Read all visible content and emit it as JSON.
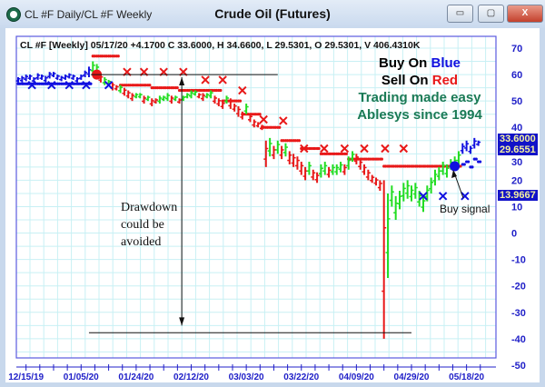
{
  "window": {
    "title": "CL #F Daily/CL #F Weekly",
    "chart_title": "Crude Oil (Futures)",
    "buttons": {
      "minimize": "▭",
      "maximize": "▢",
      "close": "X"
    }
  },
  "info_line": "CL #F [Weekly] 05/17/20  +4.1700 C 33.6000, H 34.6600, L 29.5301, O 29.5301, V 406.4310K",
  "legend": {
    "buy_prefix": "Buy On ",
    "buy_word": "Blue",
    "sell_prefix": "Sell On ",
    "sell_word": "Red",
    "tagline1": "Trading made easy",
    "tagline2": "Ablesys since 1994"
  },
  "annotations": {
    "drawdown": [
      "Drawdown",
      "could be",
      "avoided"
    ],
    "buy_signal": "Buy signal"
  },
  "last_values": {
    "close": "33.6000",
    "stop": "29.6551",
    "low": "13.9667"
  },
  "colors": {
    "buy": "#1010e0",
    "sell": "#e81818",
    "up": "#22dd22",
    "grid": "#c8f0f4",
    "axis": "#2020c8",
    "tagline": "#1a7a55"
  },
  "chart_data": {
    "type": "bar",
    "title": "Crude Oil (Futures)",
    "ylim": [
      -50,
      70
    ],
    "yticks": [
      70,
      60,
      50,
      40,
      30,
      20,
      10,
      0,
      -10,
      -20,
      -30,
      -40,
      -50
    ],
    "grid": true,
    "xtick_labels": [
      {
        "bar": 2,
        "label": "12/15/19"
      },
      {
        "bar": 16,
        "label": "01/05/20"
      },
      {
        "bar": 30,
        "label": "01/24/20"
      },
      {
        "bar": 44,
        "label": "02/12/20"
      },
      {
        "bar": 58,
        "label": "03/03/20"
      },
      {
        "bar": 72,
        "label": "03/22/20"
      },
      {
        "bar": 86,
        "label": "04/09/20"
      },
      {
        "bar": 100,
        "label": "04/29/20"
      },
      {
        "bar": 114,
        "label": "05/18/20"
      }
    ],
    "bars_format": "[low, high, color(b=blue buy, g=green, r=red sell), stop]",
    "bars": [
      [
        57,
        59,
        "b",
        56.5
      ],
      [
        57,
        59.5,
        "b",
        56.5
      ],
      [
        57.5,
        60,
        "b",
        56.5
      ],
      [
        58,
        60,
        "b",
        56.5
      ],
      [
        57,
        59,
        "b",
        56.5
      ],
      [
        58,
        60.5,
        "b",
        56.5
      ],
      [
        58,
        60,
        "b",
        56.5
      ],
      [
        57,
        59.5,
        "b",
        56.5
      ],
      [
        58.5,
        61,
        "b",
        56.5
      ],
      [
        59,
        61,
        "b",
        56.5
      ],
      [
        58,
        60,
        "b",
        56.5
      ],
      [
        57.5,
        59.5,
        "b",
        56.5
      ],
      [
        58,
        60,
        "b",
        56.5
      ],
      [
        58.5,
        60.5,
        "b",
        56.5
      ],
      [
        58,
        60,
        "b",
        56.5
      ],
      [
        57,
        59,
        "b",
        56.5
      ],
      [
        58,
        60,
        "b",
        56.5
      ],
      [
        59,
        61.5,
        "b",
        56.5
      ],
      [
        59,
        63,
        "b",
        56.5
      ],
      [
        60,
        65,
        "g",
        67
      ],
      [
        60,
        64,
        "g",
        67
      ],
      [
        57,
        60,
        "r",
        67
      ],
      [
        56,
        59,
        "g",
        67
      ],
      [
        56,
        58,
        "g",
        67
      ],
      [
        54,
        57,
        "r",
        67
      ],
      [
        54,
        56,
        "r",
        67
      ],
      [
        53,
        56,
        "g",
        56
      ],
      [
        52,
        55,
        "r",
        56
      ],
      [
        51,
        54,
        "r",
        56
      ],
      [
        50,
        53,
        "r",
        56
      ],
      [
        51,
        53,
        "g",
        56
      ],
      [
        51,
        53,
        "g",
        56
      ],
      [
        49,
        52,
        "r",
        56
      ],
      [
        50,
        52,
        "g",
        56
      ],
      [
        48,
        51,
        "r",
        55
      ],
      [
        49,
        51,
        "r",
        55
      ],
      [
        49,
        52,
        "g",
        55
      ],
      [
        50,
        52,
        "g",
        55
      ],
      [
        50,
        53,
        "g",
        55
      ],
      [
        49,
        52,
        "r",
        55
      ],
      [
        50,
        52,
        "g",
        55
      ],
      [
        49,
        51,
        "r",
        54
      ],
      [
        50,
        52,
        "g",
        54
      ],
      [
        51,
        53,
        "g",
        54
      ],
      [
        51,
        54,
        "g",
        54
      ],
      [
        52,
        54,
        "g",
        54
      ],
      [
        51,
        53,
        "r",
        54
      ],
      [
        50,
        53,
        "r",
        54
      ],
      [
        51,
        53,
        "g",
        54
      ],
      [
        51,
        54,
        "g",
        54
      ],
      [
        49,
        52,
        "r",
        54
      ],
      [
        48,
        51,
        "r",
        54
      ],
      [
        47,
        50,
        "r",
        50
      ],
      [
        49,
        52,
        "g",
        50
      ],
      [
        47,
        51,
        "r",
        50
      ],
      [
        46,
        49,
        "r",
        50
      ],
      [
        44,
        48,
        "r",
        50
      ],
      [
        43,
        46,
        "r",
        45
      ],
      [
        45,
        49,
        "g",
        45
      ],
      [
        42,
        45,
        "r",
        45
      ],
      [
        40,
        43,
        "r",
        45
      ],
      [
        40,
        42,
        "r",
        45
      ],
      [
        39,
        41,
        "r",
        40
      ],
      [
        25,
        35,
        "r",
        40
      ],
      [
        29,
        36,
        "g",
        40
      ],
      [
        28,
        33,
        "r",
        40
      ],
      [
        30,
        35,
        "g",
        40
      ],
      [
        28,
        33,
        "r",
        35
      ],
      [
        29,
        34,
        "g",
        35
      ],
      [
        26,
        31,
        "r",
        35
      ],
      [
        25,
        30,
        "r",
        35
      ],
      [
        24,
        29,
        "r",
        35
      ],
      [
        22,
        27,
        "r",
        32
      ],
      [
        20,
        25,
        "r",
        32
      ],
      [
        22,
        27,
        "g",
        32
      ],
      [
        20,
        24,
        "r",
        32
      ],
      [
        19,
        23,
        "r",
        32
      ],
      [
        21,
        26,
        "g",
        30
      ],
      [
        22,
        27,
        "g",
        30
      ],
      [
        21,
        25,
        "r",
        30
      ],
      [
        22,
        26,
        "g",
        30
      ],
      [
        22,
        26,
        "g",
        30
      ],
      [
        23,
        27,
        "g",
        30
      ],
      [
        22,
        26,
        "r",
        30
      ],
      [
        24,
        29,
        "g",
        28
      ],
      [
        27,
        31,
        "g",
        28
      ],
      [
        26,
        30,
        "r",
        28
      ],
      [
        24,
        28,
        "r",
        28
      ],
      [
        22,
        26,
        "r",
        28
      ],
      [
        20,
        24,
        "r",
        28
      ],
      [
        19,
        22,
        "r",
        28
      ],
      [
        18,
        21,
        "r",
        28
      ],
      [
        16,
        20,
        "r",
        28
      ],
      [
        -40,
        20,
        "r",
        25.3
      ],
      [
        -17,
        15,
        "g",
        25.3
      ],
      [
        10,
        18,
        "g",
        25.3
      ],
      [
        5,
        14,
        "g",
        25.3
      ],
      [
        9,
        16,
        "g",
        25.3
      ],
      [
        12,
        19,
        "g",
        25.3
      ],
      [
        13,
        20,
        "g",
        25.3
      ],
      [
        12,
        18,
        "g",
        25.3
      ],
      [
        13,
        19,
        "g",
        25.3
      ],
      [
        10,
        16,
        "g",
        25.3
      ],
      [
        8,
        14,
        "g",
        25.3
      ],
      [
        12,
        18,
        "g",
        25.3
      ],
      [
        15,
        21,
        "g",
        25.3
      ],
      [
        18,
        24,
        "g",
        25.3
      ],
      [
        20,
        25,
        "g",
        25.3
      ],
      [
        22,
        27,
        "g",
        25.3
      ],
      [
        21,
        26,
        "g",
        25.3
      ],
      [
        24,
        28,
        "g",
        25.3
      ],
      [
        24,
        29,
        "g",
        25.3
      ],
      [
        26,
        31,
        "g",
        25.3
      ],
      [
        30,
        34,
        "b",
        26
      ],
      [
        31,
        35,
        "b",
        27
      ],
      [
        30,
        33,
        "b",
        25
      ],
      [
        32,
        36,
        "b",
        28
      ],
      [
        33,
        35,
        "b",
        27
      ]
    ],
    "x_markers": [
      {
        "bar": 3.5,
        "value": 56,
        "color": "blue"
      },
      {
        "bar": 8.5,
        "value": 56,
        "color": "blue"
      },
      {
        "bar": 13,
        "value": 56,
        "color": "blue"
      },
      {
        "bar": 17.3,
        "value": 56,
        "color": "blue"
      },
      {
        "bar": 23,
        "value": 56,
        "color": "blue"
      },
      {
        "bar": 27.7,
        "value": 61,
        "color": "red"
      },
      {
        "bar": 32,
        "value": 61,
        "color": "red"
      },
      {
        "bar": 37,
        "value": 61,
        "color": "red"
      },
      {
        "bar": 42,
        "value": 61,
        "color": "red"
      },
      {
        "bar": 47.6,
        "value": 58,
        "color": "red"
      },
      {
        "bar": 52,
        "value": 58,
        "color": "red"
      },
      {
        "bar": 57,
        "value": 54,
        "color": "red"
      },
      {
        "bar": 62.4,
        "value": 43,
        "color": "red"
      },
      {
        "bar": 67.4,
        "value": 42.5,
        "color": "red"
      },
      {
        "bar": 72.7,
        "value": 32,
        "color": "red"
      },
      {
        "bar": 77.8,
        "value": 32,
        "color": "red"
      },
      {
        "bar": 83,
        "value": 32,
        "color": "red"
      },
      {
        "bar": 88,
        "value": 32,
        "color": "red"
      },
      {
        "bar": 93.3,
        "value": 32,
        "color": "red"
      },
      {
        "bar": 98,
        "value": 32,
        "color": "red"
      },
      {
        "bar": 103,
        "value": 14,
        "color": "blue"
      },
      {
        "bar": 108,
        "value": 14,
        "color": "blue"
      },
      {
        "bar": 113.6,
        "value": 14,
        "color": "blue"
      }
    ],
    "signal_circles": [
      {
        "bar": 20,
        "value": 60,
        "color": "red"
      },
      {
        "bar": 111,
        "value": 25.3,
        "color": "blue"
      }
    ],
    "reference_lines": [
      {
        "from_bar": 18.5,
        "to_bar": 66,
        "value": 60
      },
      {
        "from_bar": 18,
        "to_bar": 100,
        "value": -37.7
      }
    ],
    "drawdown_arrow": {
      "bar": 41.6,
      "from": 59,
      "to": -35
    }
  }
}
